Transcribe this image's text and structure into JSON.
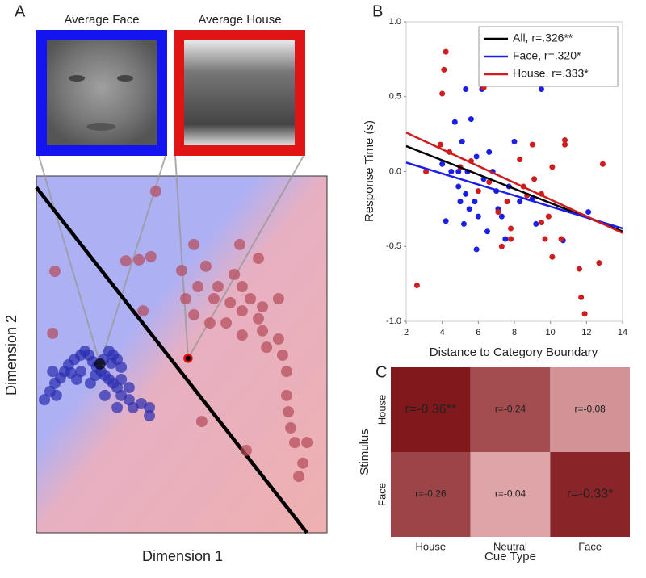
{
  "chart_data": [
    {
      "type": "scatter",
      "label": "A",
      "xlabel": "Dimension 1",
      "ylabel": "Dimension 2",
      "annotations": [
        "Average Face",
        "Average House"
      ],
      "xlim": [
        0,
        100
      ],
      "ylim": [
        0,
        100
      ],
      "series": [
        {
          "type": "line",
          "color": "#000000",
          "x": [
            0,
            93.1
          ],
          "values": [
            96.8,
            0
          ]
        },
        {
          "color": "#2a2eb0",
          "x": [
            2.8,
            4.7,
            6.4,
            8.3,
            9.7,
            11.1,
            13.1,
            15.3,
            16.7,
            18.1,
            19.4,
            20.8,
            22.2,
            23.6,
            25.0,
            26.4,
            27.8,
            29.2,
            31.9,
            33.3,
            36.1,
            38.9,
            38.9,
            27.8,
            23.6,
            20.3,
            15.3,
            13.9,
            11.9,
            26.4,
            27.8,
            29.2,
            25.8,
            23.1,
            29.2,
            31.9,
            6.9,
            5.6,
            18.6,
            25.0
          ],
          "values": [
            37.3,
            39.6,
            41.9,
            43.4,
            45.2,
            47.1,
            48.6,
            49.8,
            50.9,
            49.8,
            48.0,
            46.4,
            45.2,
            44.1,
            43.0,
            41.9,
            40.7,
            38.5,
            37.3,
            35.1,
            36.2,
            35.1,
            32.8,
            35.1,
            38.5,
            44.1,
            45.2,
            43.0,
            44.8,
            49.8,
            48.6,
            46.4,
            47.5,
            48.6,
            43.0,
            40.7,
            38.5,
            45.2,
            41.9,
            50.9
          ]
        },
        {
          "color": "#b54a58",
          "x": [
            41.1,
            30.8,
            35.3,
            39.4,
            54.2,
            70.0,
            76.4,
            50.0,
            58.3,
            68.1,
            62.5,
            70.8,
            55.6,
            61.1,
            66.7,
            51.4,
            73.6,
            77.8,
            83.3,
            76.4,
            70.8,
            77.8,
            83.3,
            84.7,
            86.1,
            86.1,
            79.2,
            70.8,
            65.3,
            59.7,
            54.2,
            36.7,
            6.4,
            5.6,
            56.9,
            72.2,
            88.9,
            93.1,
            91.7,
            90.3,
            86.7,
            87.5
          ],
          "values": [
            95.7,
            76.2,
            76.5,
            77.4,
            80.8,
            80.8,
            76.9,
            73.5,
            74.7,
            72.4,
            69.0,
            69.0,
            69.0,
            65.6,
            64.5,
            65.6,
            65.6,
            63.3,
            65.6,
            60.0,
            55.4,
            56.6,
            54.3,
            49.8,
            45.2,
            38.5,
            52.0,
            62.2,
            58.8,
            58.8,
            61.1,
            62.2,
            73.3,
            55.9,
            31.2,
            23.1,
            25.3,
            25.3,
            19.5,
            15.8,
            33.9,
            29.4
          ]
        },
        {
          "color": "#000000",
          "x": [
            21.9
          ],
          "values": [
            47.3
          ]
        },
        {
          "color": "#000000",
          "edgecolor": "#e01010",
          "x": [
            52.2
          ],
          "values": [
            48.9
          ]
        }
      ]
    },
    {
      "type": "scatter",
      "label": "B",
      "xlabel": "Distance to Category Boundary",
      "ylabel": "Response Time (s)",
      "xlim": [
        2,
        14
      ],
      "ylim": [
        -1,
        1
      ],
      "xticks": [
        2,
        4,
        6,
        8,
        10,
        12,
        14
      ],
      "yticks": [
        {
          "value": -1,
          "label": "-1.0"
        },
        {
          "value": -0.5,
          "label": "-0.5"
        },
        {
          "value": 0,
          "label": "0.0"
        },
        {
          "value": 0.5,
          "label": "0.5"
        },
        {
          "value": 1,
          "label": "1.0"
        }
      ],
      "legend": "upper right",
      "series": [
        {
          "color": "#1a1ee6",
          "x": [
            4.0,
            4.2,
            4.5,
            4.7,
            4.9,
            5.0,
            5.1,
            5.2,
            5.3,
            5.4,
            5.5,
            5.6,
            5.8,
            5.9,
            5.9,
            6.0,
            6.2,
            6.3,
            6.5,
            6.6,
            6.8,
            7.0,
            7.1,
            7.3,
            7.5,
            7.7,
            8.0,
            8.3,
            9.0,
            9.2,
            9.5,
            10.7,
            12.1,
            5.3,
            4.9
          ],
          "values": [
            0.05,
            -0.33,
            0.0,
            0.33,
            -0.1,
            -0.2,
            0.2,
            -0.35,
            -0.15,
            0.0,
            -0.25,
            0.35,
            -0.2,
            -0.52,
            0.1,
            -0.3,
            0.55,
            -0.05,
            -0.4,
            0.13,
            0.0,
            -0.13,
            -0.25,
            -0.3,
            -0.45,
            -0.1,
            0.2,
            -0.2,
            -0.18,
            -0.35,
            0.55,
            -0.46,
            -0.27,
            0.55,
            0.0
          ]
        },
        {
          "color": "#d01c1c",
          "x": [
            2.6,
            3.1,
            3.9,
            4.0,
            4.1,
            4.2,
            4.4,
            5.0,
            5.6,
            6.0,
            6.3,
            6.3,
            6.6,
            7.1,
            7.3,
            7.6,
            7.8,
            7.8,
            8.3,
            8.5,
            8.7,
            9.0,
            9.1,
            9.5,
            9.7,
            9.9,
            10.1,
            10.6,
            10.8,
            10.8,
            11.6,
            11.7,
            11.9,
            12.7,
            12.9,
            9.5,
            10.1
          ],
          "values": [
            -0.76,
            0.0,
            0.18,
            0.52,
            0.68,
            0.8,
            0.13,
            0.03,
            0.07,
            -0.13,
            0.56,
            0.6,
            -0.07,
            -0.27,
            -0.5,
            -0.2,
            -0.45,
            -0.38,
            0.08,
            -0.1,
            -0.16,
            0.18,
            -0.05,
            -0.15,
            -0.45,
            -0.3,
            -0.57,
            -0.45,
            0.21,
            0.18,
            -0.65,
            -0.84,
            -0.95,
            -0.61,
            0.05,
            -0.34,
            0.03
          ]
        },
        {
          "type": "line",
          "name": "All, r=.326**",
          "color": "#000000",
          "x": [
            2,
            14
          ],
          "values": [
            0.17,
            -0.4
          ]
        },
        {
          "type": "line",
          "name": "Face, r=.320*",
          "color": "#1a1ee6",
          "x": [
            2,
            14
          ],
          "values": [
            0.06,
            -0.38
          ]
        },
        {
          "type": "line",
          "name": "House, r=.333*",
          "color": "#d01c1c",
          "x": [
            2,
            14
          ],
          "values": [
            0.26,
            -0.41
          ]
        }
      ]
    },
    {
      "type": "heatmap",
      "label": "C",
      "xlabel": "Cue Type",
      "ylabel": "Stimulus",
      "categories": [
        "House",
        "Neutral",
        "Face"
      ],
      "rows": [
        "House",
        "Face"
      ],
      "values": [
        [
          -0.36,
          -0.24,
          -0.08
        ],
        [
          -0.26,
          -0.04,
          -0.33
        ]
      ],
      "value_labels": [
        [
          "r=-0.36**",
          "r=-0.24",
          "r=-0.08"
        ],
        [
          "r=-0.26",
          "r=-0.04",
          "r=-0.33*"
        ]
      ]
    }
  ]
}
